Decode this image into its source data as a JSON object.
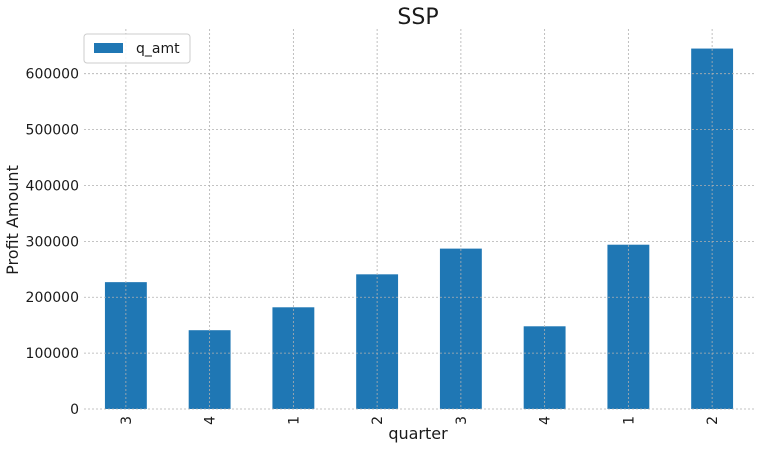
{
  "chart_data": {
    "type": "bar",
    "title": "SSP",
    "xlabel": "quarter",
    "ylabel": "Profit Amount",
    "categories": [
      "3",
      "4",
      "1",
      "2",
      "3",
      "4",
      "1",
      "2"
    ],
    "series": [
      {
        "name": "q_amt",
        "color": "#1f77b4",
        "values": [
          227000,
          141000,
          182000,
          241000,
          287000,
          148000,
          294000,
          645000
        ]
      }
    ],
    "ylim": [
      0,
      680000
    ],
    "yticks": [
      0,
      100000,
      200000,
      300000,
      400000,
      500000,
      600000
    ],
    "ytick_labels": [
      "0",
      "100000",
      "200000",
      "300000",
      "400000",
      "500000",
      "600000"
    ],
    "grid": true,
    "legend_position": "upper left"
  }
}
